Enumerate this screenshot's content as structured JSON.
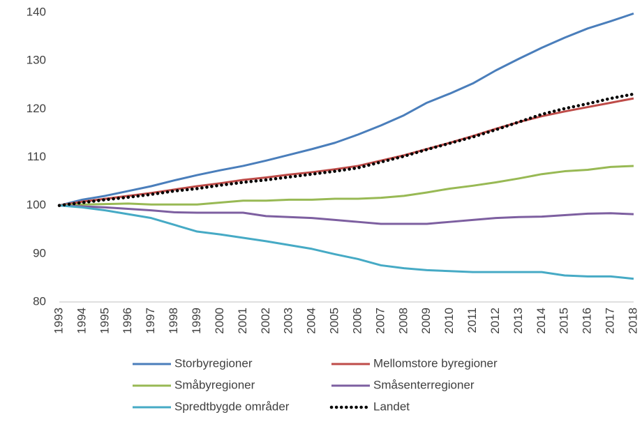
{
  "chart_data": {
    "type": "line",
    "categories": [
      "1993",
      "1994",
      "1995",
      "1996",
      "1997",
      "1998",
      "1999",
      "2000",
      "2001",
      "2002",
      "2003",
      "2004",
      "2005",
      "2006",
      "2007",
      "2008",
      "2009",
      "2010",
      "2011",
      "2012",
      "2013",
      "2014",
      "2015",
      "2016",
      "2017",
      "2018"
    ],
    "ylim": [
      80,
      140
    ],
    "yticks": [
      80,
      90,
      100,
      110,
      120,
      130,
      140
    ],
    "grid": false,
    "legend": "bottom",
    "series": [
      {
        "name": "Storbyregioner",
        "color": "#4a7ebb",
        "style": "solid",
        "values": [
          100,
          101.2,
          102,
          103,
          104,
          105.2,
          106.3,
          107.3,
          108.2,
          109.3,
          110.5,
          111.7,
          113,
          114.7,
          116.6,
          118.7,
          121.3,
          123.2,
          125.3,
          128,
          130.4,
          132.7,
          134.8,
          136.7,
          138.2,
          139.8
        ]
      },
      {
        "name": "Mellomstore byregioner",
        "color": "#be4b48",
        "style": "solid",
        "values": [
          100,
          100.8,
          101.4,
          102,
          102.6,
          103.3,
          104,
          104.6,
          105.3,
          105.8,
          106.4,
          106.9,
          107.5,
          108.2,
          109.3,
          110.4,
          111.7,
          113,
          114.4,
          115.9,
          117.3,
          118.5,
          119.5,
          120.4,
          121.3,
          122.2
        ]
      },
      {
        "name": "Småbyregioner",
        "color": "#98b954",
        "style": "solid",
        "values": [
          100,
          100.2,
          100.3,
          100.4,
          100.2,
          100.2,
          100.2,
          100.6,
          101,
          101,
          101.2,
          101.2,
          101.4,
          101.4,
          101.6,
          102,
          102.7,
          103.5,
          104.1,
          104.8,
          105.6,
          106.5,
          107.1,
          107.4,
          108,
          108.2
        ]
      },
      {
        "name": "Småsenterregioner",
        "color": "#7d5fa0",
        "style": "solid",
        "values": [
          100,
          99.8,
          99.6,
          99.3,
          99,
          98.6,
          98.5,
          98.5,
          98.5,
          97.8,
          97.6,
          97.4,
          97,
          96.6,
          96.2,
          96.2,
          96.2,
          96.6,
          97,
          97.4,
          97.6,
          97.7,
          98,
          98.3,
          98.4,
          98.2
        ]
      },
      {
        "name": "Spredtbygde områder",
        "color": "#46aac5",
        "style": "solid",
        "values": [
          100,
          99.6,
          99,
          98.2,
          97.4,
          96,
          94.6,
          94,
          93.3,
          92.6,
          91.8,
          91,
          89.9,
          88.9,
          87.6,
          87,
          86.6,
          86.4,
          86.2,
          86.2,
          86.2,
          86.2,
          85.5,
          85.3,
          85.3,
          84.8
        ]
      },
      {
        "name": "Landet",
        "color": "#000000",
        "style": "dotted",
        "values": [
          100,
          100.6,
          101.2,
          101.7,
          102.3,
          103,
          103.5,
          104.2,
          104.8,
          105.3,
          105.9,
          106.5,
          107.1,
          107.8,
          109,
          110.2,
          111.6,
          112.9,
          114.2,
          115.7,
          117.3,
          118.9,
          120.1,
          121.1,
          122.2,
          123.1
        ]
      }
    ]
  }
}
